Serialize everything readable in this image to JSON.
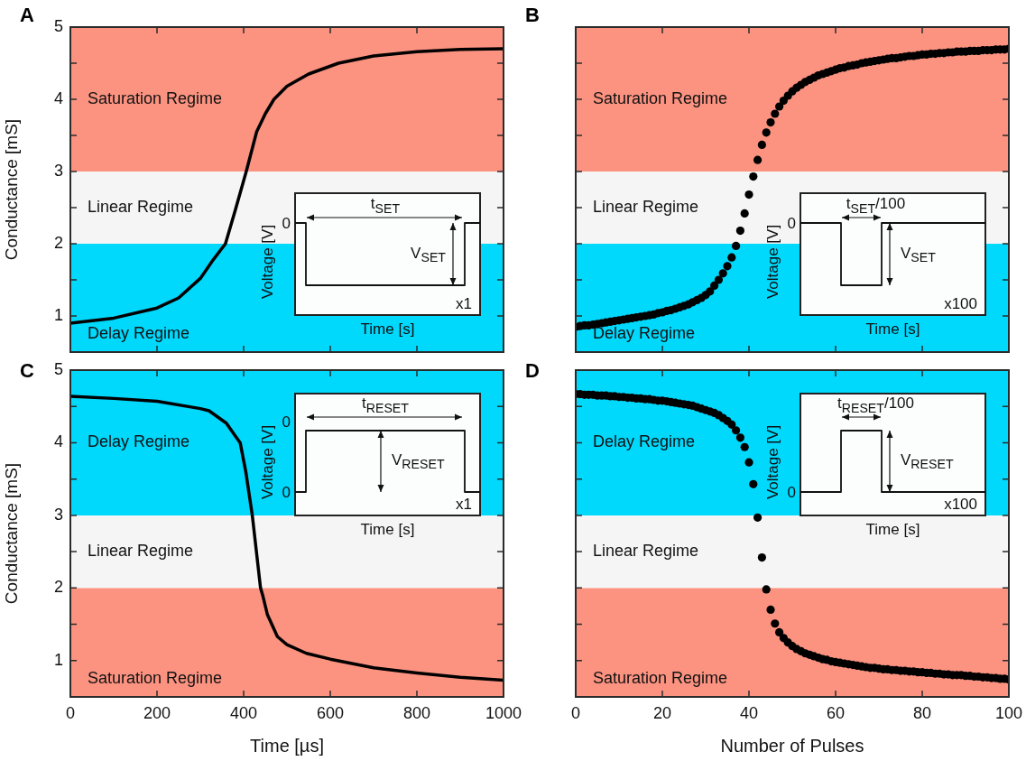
{
  "chart_data": [
    {
      "type": "line",
      "title": "A",
      "ylabel": "Conductance [mS]",
      "color": "#000000",
      "line_style": "solid",
      "x": [
        0,
        100,
        200,
        250,
        300,
        330,
        358,
        380,
        406,
        430,
        450,
        470,
        500,
        550,
        619,
        700,
        800,
        900,
        1000
      ],
      "values": [
        0.9,
        0.97,
        1.11,
        1.25,
        1.52,
        1.78,
        2.0,
        2.45,
        3.0,
        3.55,
        3.8,
        4.0,
        4.18,
        4.35,
        4.5,
        4.6,
        4.66,
        4.69,
        4.7
      ],
      "xlim": [
        0,
        1000
      ],
      "xticks": [
        0,
        200,
        400,
        600,
        800,
        1000
      ],
      "ylim": [
        0.5,
        5
      ],
      "yticks": [
        1,
        {
          "value": 1.5,
          "label": null
        },
        2,
        {
          "value": 2.5,
          "label": null
        },
        3,
        {
          "value": 3.5,
          "label": null
        },
        4,
        {
          "value": 4.5,
          "label": null
        },
        5
      ],
      "tick_labels": "y",
      "bands": [
        {
          "axis": "y",
          "from": 0.5,
          "to": 2,
          "label": "Delay Regime",
          "color": "#00d8fc"
        },
        {
          "axis": "y",
          "from": 2,
          "to": 3,
          "label": "Linear Regime",
          "color": "#f5f5f5"
        },
        {
          "axis": "y",
          "from": 3,
          "to": 5,
          "label": "Saturation Regime",
          "color": "#fc9381"
        }
      ],
      "annotations": [
        "Voltage [V]",
        "Time [s]",
        "0",
        "t$_{SET}$",
        "V$_{SET}$",
        "x1"
      ]
    },
    {
      "type": "scatter",
      "title": "B",
      "color": "#000000",
      "marker": "circle",
      "x": [
        0,
        1,
        2,
        3,
        4,
        5,
        6,
        7,
        8,
        9,
        10,
        11,
        12,
        13,
        14,
        15,
        16,
        17,
        18,
        19,
        20,
        21,
        22,
        23,
        24,
        25,
        26,
        27,
        28,
        29,
        30,
        31,
        32,
        33,
        34,
        35,
        36,
        37,
        38,
        39,
        40,
        41,
        42,
        43,
        44,
        45,
        46,
        47,
        48,
        49,
        50,
        51,
        52,
        53,
        54,
        55,
        56,
        57,
        58,
        59,
        60,
        61,
        62,
        63,
        64,
        65,
        66,
        67,
        68,
        69,
        70,
        71,
        72,
        73,
        74,
        75,
        76,
        77,
        78,
        79,
        80,
        81,
        82,
        83,
        84,
        85,
        86,
        87,
        88,
        89,
        90,
        91,
        92,
        93,
        94,
        95,
        96,
        97,
        98,
        99,
        100
      ],
      "values": [
        0.85,
        0.86,
        0.87,
        0.87,
        0.88,
        0.89,
        0.9,
        0.91,
        0.92,
        0.93,
        0.94,
        0.95,
        0.96,
        0.97,
        0.98,
        0.99,
        1.0,
        1.01,
        1.02,
        1.04,
        1.05,
        1.07,
        1.08,
        1.1,
        1.12,
        1.14,
        1.16,
        1.19,
        1.22,
        1.25,
        1.29,
        1.34,
        1.42,
        1.5,
        1.59,
        1.69,
        1.81,
        1.97,
        2.18,
        2.42,
        2.68,
        2.93,
        3.16,
        3.37,
        3.54,
        3.68,
        3.8,
        3.9,
        3.98,
        4.05,
        4.11,
        4.16,
        4.2,
        4.24,
        4.27,
        4.3,
        4.33,
        4.35,
        4.37,
        4.39,
        4.41,
        4.43,
        4.44,
        4.46,
        4.47,
        4.48,
        4.5,
        4.51,
        4.52,
        4.53,
        4.54,
        4.55,
        4.56,
        4.57,
        4.57,
        4.58,
        4.59,
        4.6,
        4.6,
        4.61,
        4.62,
        4.62,
        4.63,
        4.63,
        4.64,
        4.64,
        4.65,
        4.65,
        4.66,
        4.66,
        4.66,
        4.67,
        4.67,
        4.67,
        4.68,
        4.68,
        4.68,
        4.69,
        4.69,
        4.69,
        4.7
      ],
      "xlim": [
        0,
        100
      ],
      "xticks": [
        0,
        20,
        40,
        60,
        80,
        100
      ],
      "ylim": [
        0.5,
        5
      ],
      "yticks": [
        1,
        {
          "value": 1.5,
          "label": null
        },
        2,
        {
          "value": 2.5,
          "label": null
        },
        3,
        {
          "value": 3.5,
          "label": null
        },
        4,
        {
          "value": 4.5,
          "label": null
        },
        5
      ],
      "tick_labels": false,
      "bands": [
        {
          "axis": "y",
          "from": 0.5,
          "to": 2,
          "label": "Delay Regime",
          "color": "#00d8fc"
        },
        {
          "axis": "y",
          "from": 2,
          "to": 3,
          "label": "Linear Regime",
          "color": "#f5f5f5"
        },
        {
          "axis": "y",
          "from": 3,
          "to": 5,
          "label": "Saturation Regime",
          "color": "#fc9381"
        }
      ],
      "annotations": [
        "Voltage [V]",
        "Time [s]",
        "0",
        "t$_{SET}$/100",
        "V$_{SET}$",
        "x100"
      ]
    },
    {
      "type": "line",
      "title": "C",
      "ylabel": "Conductance [mS]",
      "xlabel": "Time [µs]",
      "color": "#000000",
      "line_style": "solid",
      "x": [
        0,
        100,
        200,
        300,
        320,
        360,
        380,
        392,
        405,
        420,
        439,
        444,
        455,
        478,
        500,
        545,
        600,
        700,
        730,
        800,
        900,
        1000
      ],
      "values": [
        4.64,
        4.61,
        4.57,
        4.47,
        4.44,
        4.27,
        4.1,
        4.0,
        3.6,
        3.0,
        2.0,
        1.9,
        1.63,
        1.33,
        1.22,
        1.1,
        1.02,
        0.9,
        0.88,
        0.83,
        0.77,
        0.73
      ],
      "xlim": [
        0,
        1000
      ],
      "xticks": [
        0,
        200,
        400,
        600,
        800,
        1000
      ],
      "ylim": [
        0.5,
        5
      ],
      "yticks": [
        1,
        {
          "value": 1.5,
          "label": null
        },
        2,
        {
          "value": 2.5,
          "label": null
        },
        3,
        {
          "value": 3.5,
          "label": null
        },
        4,
        {
          "value": 4.5,
          "label": null
        },
        5
      ],
      "bands": [
        {
          "axis": "y",
          "from": 0.5,
          "to": 2,
          "label": "Saturation Regime",
          "color": "#fc9381"
        },
        {
          "axis": "y",
          "from": 2,
          "to": 3,
          "label": "Linear Regime",
          "color": "#f5f5f5"
        },
        {
          "axis": "y",
          "from": 3,
          "to": 5,
          "label": "Delay Regime",
          "color": "#00d8fc"
        }
      ],
      "annotations": [
        "Voltage [V]",
        "Time [s]",
        "0",
        "0",
        "t$_{RESET}$",
        "V$_{RESET}$",
        "x1"
      ]
    },
    {
      "type": "scatter",
      "title": "D",
      "xlabel": "Number of Pulses",
      "color": "#000000",
      "marker": "circle",
      "x": [
        0,
        1,
        2,
        3,
        4,
        5,
        6,
        7,
        8,
        9,
        10,
        11,
        12,
        13,
        14,
        15,
        16,
        17,
        18,
        19,
        20,
        21,
        22,
        23,
        24,
        25,
        26,
        27,
        28,
        29,
        30,
        31,
        32,
        33,
        34,
        35,
        36,
        37,
        38,
        39,
        40,
        41,
        42,
        43,
        44,
        45,
        46,
        47,
        48,
        49,
        50,
        51,
        52,
        53,
        54,
        55,
        56,
        57,
        58,
        59,
        60,
        61,
        62,
        63,
        64,
        65,
        66,
        67,
        68,
        69,
        70,
        71,
        72,
        73,
        74,
        75,
        76,
        77,
        78,
        79,
        80,
        81,
        82,
        83,
        84,
        85,
        86,
        87,
        88,
        89,
        90,
        91,
        92,
        93,
        94,
        95,
        96,
        97,
        98,
        99,
        100
      ],
      "values": [
        4.67,
        4.67,
        4.66,
        4.66,
        4.66,
        4.65,
        4.65,
        4.65,
        4.64,
        4.64,
        4.63,
        4.63,
        4.62,
        4.62,
        4.61,
        4.61,
        4.6,
        4.6,
        4.59,
        4.58,
        4.58,
        4.57,
        4.56,
        4.55,
        4.54,
        4.53,
        4.52,
        4.51,
        4.49,
        4.47,
        4.45,
        4.43,
        4.41,
        4.38,
        4.34,
        4.3,
        4.25,
        4.17,
        4.07,
        3.94,
        3.73,
        3.43,
        2.97,
        2.42,
        1.98,
        1.7,
        1.51,
        1.39,
        1.31,
        1.25,
        1.2,
        1.16,
        1.13,
        1.1,
        1.08,
        1.06,
        1.04,
        1.02,
        1.01,
        0.99,
        0.98,
        0.97,
        0.96,
        0.95,
        0.94,
        0.93,
        0.92,
        0.91,
        0.9,
        0.9,
        0.89,
        0.88,
        0.88,
        0.87,
        0.87,
        0.86,
        0.86,
        0.85,
        0.85,
        0.84,
        0.84,
        0.83,
        0.83,
        0.82,
        0.82,
        0.81,
        0.81,
        0.8,
        0.8,
        0.8,
        0.79,
        0.79,
        0.78,
        0.78,
        0.77,
        0.77,
        0.76,
        0.76,
        0.75,
        0.75,
        0.74
      ],
      "xlim": [
        0,
        100
      ],
      "xticks": [
        0,
        20,
        40,
        60,
        80,
        100
      ],
      "ylim": [
        0.5,
        5
      ],
      "yticks": [
        1,
        {
          "value": 1.5,
          "label": null
        },
        2,
        {
          "value": 2.5,
          "label": null
        },
        3,
        {
          "value": 3.5,
          "label": null
        },
        4,
        {
          "value": 4.5,
          "label": null
        },
        5
      ],
      "tick_labels": "x",
      "bands": [
        {
          "axis": "y",
          "from": 0.5,
          "to": 2,
          "label": "Saturation Regime",
          "color": "#fc9381"
        },
        {
          "axis": "y",
          "from": 2,
          "to": 3,
          "label": "Linear Regime",
          "color": "#f5f5f5"
        },
        {
          "axis": "y",
          "from": 3,
          "to": 5,
          "label": "Delay Regime",
          "color": "#00d8fc"
        }
      ],
      "annotations": [
        "Voltage [V]",
        "Time [s]",
        "0",
        "t$_{RESET}$/100",
        "V$_{RESET}$",
        "x100"
      ]
    }
  ]
}
